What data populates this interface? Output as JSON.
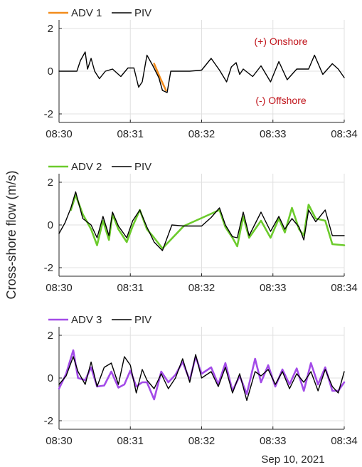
{
  "figure": {
    "ylabel": "Cross-shore flow (m/s)",
    "date_label": "Sep 10, 2021"
  },
  "colors": {
    "adv1": "#F28C1C",
    "adv2": "#6CCB2C",
    "adv3": "#A34BE8",
    "piv": "#000000",
    "annotation": "#C0141B",
    "axis": "#262626",
    "grid": "#E0E0E0"
  },
  "chart_data": [
    {
      "type": "line",
      "xlim": [
        "08:30",
        "08:34"
      ],
      "ylim": [
        -2.4,
        2.4
      ],
      "yticks": [
        -2,
        0,
        2
      ],
      "xticks": [
        "08:30",
        "08:31",
        "08:32",
        "08:33",
        "08:34"
      ],
      "grid": true,
      "legend": "top-left",
      "annotations": [
        "(+) Onshore",
        "(-) Offshore"
      ],
      "series": [
        {
          "name": "ADV 1",
          "x": [
            "08:31:20",
            "08:31:25",
            "08:31:30"
          ],
          "values": [
            0.35,
            -0.3,
            -0.9
          ]
        },
        {
          "name": "PIV",
          "x": [
            "08:30:00",
            "08:30:15",
            "08:30:18",
            "08:30:22",
            "08:30:24",
            "08:30:27",
            "08:30:30",
            "08:30:34",
            "08:30:39",
            "08:30:45",
            "08:30:52",
            "08:30:58",
            "08:31:03",
            "08:31:07",
            "08:31:10",
            "08:31:14",
            "08:31:19",
            "08:31:24",
            "08:31:27",
            "08:31:31",
            "08:31:34",
            "08:31:40",
            "08:31:50",
            "08:32:00",
            "08:32:08",
            "08:32:15",
            "08:32:21",
            "08:32:25",
            "08:32:29",
            "08:32:32",
            "08:32:35",
            "08:32:43",
            "08:32:50",
            "08:32:58",
            "08:33:05",
            "08:33:12",
            "08:33:20",
            "08:33:30",
            "08:33:35",
            "08:33:42",
            "08:33:50",
            "08:33:55",
            "08:34:00"
          ],
          "values": [
            0,
            0,
            0.5,
            0.9,
            0.1,
            0.6,
            0,
            -0.35,
            0,
            0.1,
            -0.25,
            0.15,
            0.15,
            -0.75,
            -0.5,
            0.75,
            0.25,
            -0.3,
            -0.9,
            -1.0,
            0,
            0,
            0,
            0.05,
            0.6,
            0.05,
            -0.5,
            0.2,
            0.4,
            -0.15,
            0.1,
            -0.25,
            0.25,
            -0.5,
            0.45,
            -0.4,
            0.1,
            0.1,
            0.75,
            -0.15,
            0.35,
            0.1,
            -0.3
          ]
        }
      ]
    },
    {
      "type": "line",
      "xlim": [
        "08:30",
        "08:34"
      ],
      "ylim": [
        -2.4,
        2.4
      ],
      "yticks": [
        -2,
        0,
        2
      ],
      "xticks": [
        "08:30",
        "08:31",
        "08:32",
        "08:33",
        "08:34"
      ],
      "grid": true,
      "legend": "top-left",
      "series": [
        {
          "name": "ADV 2",
          "x": [
            "08:30:10",
            "08:30:14",
            "08:30:20",
            "08:30:27",
            "08:30:32",
            "08:30:37",
            "08:30:42",
            "08:30:45",
            "08:30:50",
            "08:30:57",
            "08:31:02",
            "08:31:08",
            "08:31:14",
            "08:31:20",
            "08:31:27",
            "08:31:45",
            "08:32:15",
            "08:32:20",
            "08:32:26",
            "08:32:30",
            "08:32:35",
            "08:32:40",
            "08:32:50",
            "08:32:58",
            "08:33:05",
            "08:33:10",
            "08:33:16",
            "08:33:22",
            "08:33:26",
            "08:33:30",
            "08:33:36",
            "08:33:44",
            "08:33:50",
            "08:34:00"
          ],
          "values": [
            0.7,
            1.4,
            0.5,
            -0.2,
            -0.95,
            0.2,
            -0.7,
            0.5,
            -0.2,
            -0.8,
            -0.05,
            0.7,
            -0.2,
            -0.6,
            -1.1,
            -0.05,
            0.7,
            -0.1,
            -0.6,
            -1.0,
            0.4,
            -0.6,
            0.2,
            -0.6,
            0.3,
            -0.35,
            0.8,
            -0.2,
            -0.5,
            0.95,
            0.3,
            0.2,
            -0.9,
            -0.95
          ]
        },
        {
          "name": "PIV",
          "x": [
            "08:30:00",
            "08:30:05",
            "08:30:10",
            "08:30:14",
            "08:30:20",
            "08:30:27",
            "08:30:32",
            "08:30:37",
            "08:30:42",
            "08:30:45",
            "08:30:50",
            "08:30:57",
            "08:31:02",
            "08:31:08",
            "08:31:14",
            "08:31:20",
            "08:31:27",
            "08:31:35",
            "08:31:45",
            "08:32:00",
            "08:32:08",
            "08:32:15",
            "08:32:20",
            "08:32:26",
            "08:32:30",
            "08:32:35",
            "08:32:40",
            "08:32:50",
            "08:32:58",
            "08:33:05",
            "08:33:10",
            "08:33:16",
            "08:33:22",
            "08:33:26",
            "08:33:30",
            "08:33:36",
            "08:33:44",
            "08:33:50",
            "08:34:00"
          ],
          "values": [
            -0.4,
            0.1,
            0.8,
            1.55,
            0.3,
            0,
            -0.6,
            0.4,
            -0.5,
            0.6,
            -0.05,
            -0.6,
            0.2,
            0.7,
            -0.1,
            -0.8,
            -1.2,
            0,
            -0.05,
            -0.05,
            0.35,
            0.8,
            0,
            -0.55,
            -0.6,
            0.6,
            -0.5,
            0.6,
            -0.3,
            0.4,
            -0.2,
            0.3,
            -0.1,
            -0.7,
            0.7,
            0.15,
            0.7,
            -0.5,
            -0.5
          ]
        }
      ]
    },
    {
      "type": "line",
      "xlim": [
        "08:30",
        "08:34"
      ],
      "ylim": [
        -2.4,
        2.4
      ],
      "yticks": [
        -2,
        0,
        2
      ],
      "xticks": [
        "08:30",
        "08:31",
        "08:32",
        "08:33",
        "08:34"
      ],
      "grid": true,
      "legend": "top-left",
      "series": [
        {
          "name": "ADV 3",
          "x": [
            "08:30:00",
            "08:30:06",
            "08:30:12",
            "08:30:16",
            "08:30:22",
            "08:30:27",
            "08:30:32",
            "08:30:38",
            "08:30:44",
            "08:30:50",
            "08:30:55",
            "08:31:00",
            "08:31:05",
            "08:31:10",
            "08:31:14",
            "08:31:20",
            "08:31:26",
            "08:31:32",
            "08:31:38",
            "08:31:44",
            "08:31:50",
            "08:31:55",
            "08:32:00",
            "08:32:08",
            "08:32:14",
            "08:32:20",
            "08:32:26",
            "08:32:32",
            "08:32:38",
            "08:32:45",
            "08:32:50",
            "08:32:56",
            "08:33:02",
            "08:33:08",
            "08:33:14",
            "08:33:20",
            "08:33:26",
            "08:33:32",
            "08:33:38",
            "08:33:44",
            "08:33:50",
            "08:33:55",
            "08:34:00"
          ],
          "values": [
            -0.5,
            0.2,
            1.3,
            0,
            -0.1,
            0.5,
            -0.4,
            -0.35,
            0.3,
            -0.45,
            -0.3,
            0.35,
            -0.4,
            -0.2,
            -0.2,
            -1.0,
            0.3,
            -0.2,
            0.15,
            0.75,
            -0.1,
            1.0,
            0.2,
            0.5,
            -0.3,
            0.7,
            -0.6,
            0.1,
            -0.75,
            0.9,
            -0.2,
            0.6,
            -0.4,
            0.4,
            -0.3,
            0.45,
            -0.6,
            0.7,
            -0.3,
            0.5,
            -0.6,
            -0.6,
            -0.2
          ]
        },
        {
          "name": "PIV",
          "x": [
            "08:30:00",
            "08:30:06",
            "08:30:12",
            "08:30:16",
            "08:30:22",
            "08:30:27",
            "08:30:32",
            "08:30:38",
            "08:30:44",
            "08:30:50",
            "08:30:55",
            "08:31:00",
            "08:31:05",
            "08:31:10",
            "08:31:14",
            "08:31:20",
            "08:31:26",
            "08:31:32",
            "08:31:38",
            "08:31:44",
            "08:31:50",
            "08:31:55",
            "08:32:00",
            "08:32:08",
            "08:32:14",
            "08:32:20",
            "08:32:26",
            "08:32:32",
            "08:32:38",
            "08:32:45",
            "08:32:50",
            "08:32:56",
            "08:33:02",
            "08:33:08",
            "08:33:14",
            "08:33:20",
            "08:33:26",
            "08:33:32",
            "08:33:38",
            "08:33:44",
            "08:33:50",
            "08:33:55",
            "08:34:00"
          ],
          "values": [
            -0.3,
            0.1,
            1.0,
            0.3,
            -0.3,
            0.75,
            -0.4,
            0.5,
            0.7,
            -0.3,
            1.0,
            0.6,
            -0.7,
            0.4,
            -0.1,
            -0.5,
            0.2,
            -0.5,
            0.0,
            0.9,
            -0.2,
            1.1,
            0.0,
            0.3,
            -0.4,
            0.5,
            -0.7,
            0.2,
            -1.05,
            0.3,
            0.1,
            0.4,
            -0.3,
            0.3,
            -0.5,
            0.2,
            -0.2,
            0.3,
            -0.6,
            0.4,
            -0.4,
            -0.7,
            0.3
          ]
        }
      ]
    }
  ]
}
